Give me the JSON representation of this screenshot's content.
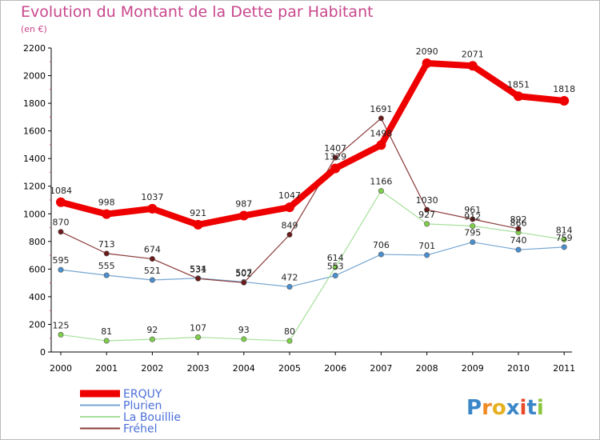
{
  "header": {
    "title": "Evolution du Montant de la Dette par Habitant",
    "subtitle": "(en €)"
  },
  "logo": {
    "text": "Proxiti"
  },
  "chart_data": {
    "type": "line",
    "title": "Evolution du Montant de la Dette par Habitant",
    "ylabel": "(en €)",
    "xlabel": "",
    "categories": [
      "2000",
      "2001",
      "2002",
      "2003",
      "2004",
      "2005",
      "2006",
      "2007",
      "2008",
      "2009",
      "2010",
      "2011"
    ],
    "ylim": [
      0,
      2200
    ],
    "yticks": [
      0,
      200,
      400,
      600,
      800,
      1000,
      1200,
      1400,
      1600,
      1800,
      2000,
      2200
    ],
    "grid": false,
    "legend_position": "bottom-left",
    "series": [
      {
        "name": "ERQUY",
        "color": "#ee0000",
        "marker": "#ee0000",
        "values": [
          1084,
          998,
          1037,
          921,
          987,
          1047,
          1329,
          1498,
          2090,
          2071,
          1851,
          1818
        ]
      },
      {
        "name": "Plurien",
        "color": "#76a6d2",
        "marker": "#4a8fcf",
        "values": [
          595,
          555,
          521,
          534,
          507,
          472,
          553,
          706,
          701,
          795,
          740,
          759
        ]
      },
      {
        "name": "La Bouillie",
        "color": "#a6e09a",
        "marker": "#7fcf4a",
        "values": [
          125,
          81,
          92,
          107,
          93,
          80,
          614,
          1166,
          927,
          912,
          866,
          814
        ]
      },
      {
        "name": "Fréhel",
        "color": "#8b3a3a",
        "marker": "#6b1a1a",
        "values": [
          870,
          713,
          674,
          531,
          502,
          849,
          1407,
          1691,
          1030,
          961,
          892,
          null
        ]
      }
    ]
  }
}
